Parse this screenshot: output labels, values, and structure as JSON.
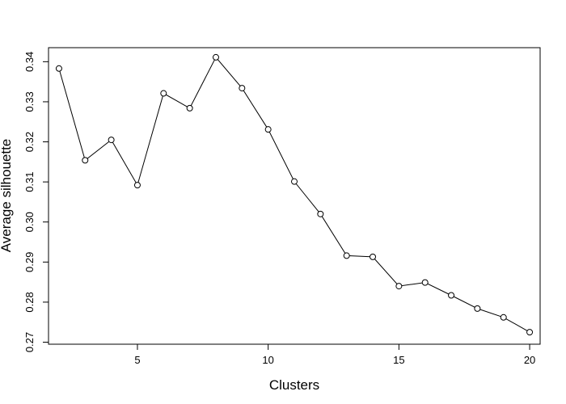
{
  "chart_data": {
    "type": "line",
    "title": "",
    "xlabel": "Clusters",
    "ylabel": "Average silhouette",
    "xlim": [
      1.6,
      20.4
    ],
    "ylim": [
      0.2695,
      0.3435
    ],
    "x_ticks": [
      5,
      10,
      15,
      20
    ],
    "y_ticks": [
      0.27,
      0.28,
      0.29,
      0.3,
      0.31,
      0.32,
      0.33,
      0.34
    ],
    "grid": false,
    "legend": false,
    "marker": "open-circle",
    "line_color": "#000000",
    "series": [
      {
        "x": [
          2,
          3,
          4,
          5,
          6,
          7,
          8,
          9,
          10,
          11,
          12,
          13,
          14,
          15,
          16,
          17,
          18,
          19,
          20
        ],
        "values": [
          0.3383,
          0.3154,
          0.3205,
          0.3092,
          0.3321,
          0.3284,
          0.3411,
          0.3334,
          0.3231,
          0.3101,
          0.302,
          0.2916,
          0.2913,
          0.284,
          0.2849,
          0.2817,
          0.2784,
          0.2762,
          0.2725
        ]
      }
    ]
  }
}
